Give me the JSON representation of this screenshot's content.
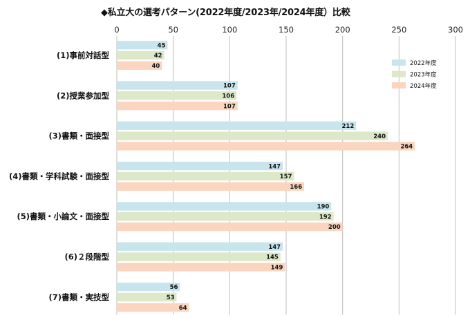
{
  "chart_data": {
    "type": "bar",
    "orientation": "horizontal",
    "title": "◆私立大の選考パターン(2022年度/2023年/2024年度）比較",
    "categories": [
      "(1)事前対話型",
      "(2)授業参加型",
      "(3)書類・面接型",
      "(4)書類・学科試験・面接型",
      "(5)書類・小論文・面接型",
      "(6)２段階型",
      "(7)書類・実技型"
    ],
    "series": [
      {
        "name": "2022年度",
        "color": "#c8e5ee",
        "values": [
          45,
          107,
          212,
          147,
          190,
          147,
          56
        ]
      },
      {
        "name": "2023年度",
        "color": "#dce8c8",
        "values": [
          42,
          106,
          240,
          157,
          192,
          145,
          53
        ]
      },
      {
        "name": "2024年度",
        "color": "#fbd5bf",
        "values": [
          40,
          107,
          264,
          166,
          200,
          149,
          64
        ]
      }
    ],
    "xlim": [
      0,
      300
    ],
    "xticks": [
      0,
      50,
      100,
      150,
      200,
      250,
      300
    ],
    "grid": true,
    "legend_position": "top-right"
  }
}
